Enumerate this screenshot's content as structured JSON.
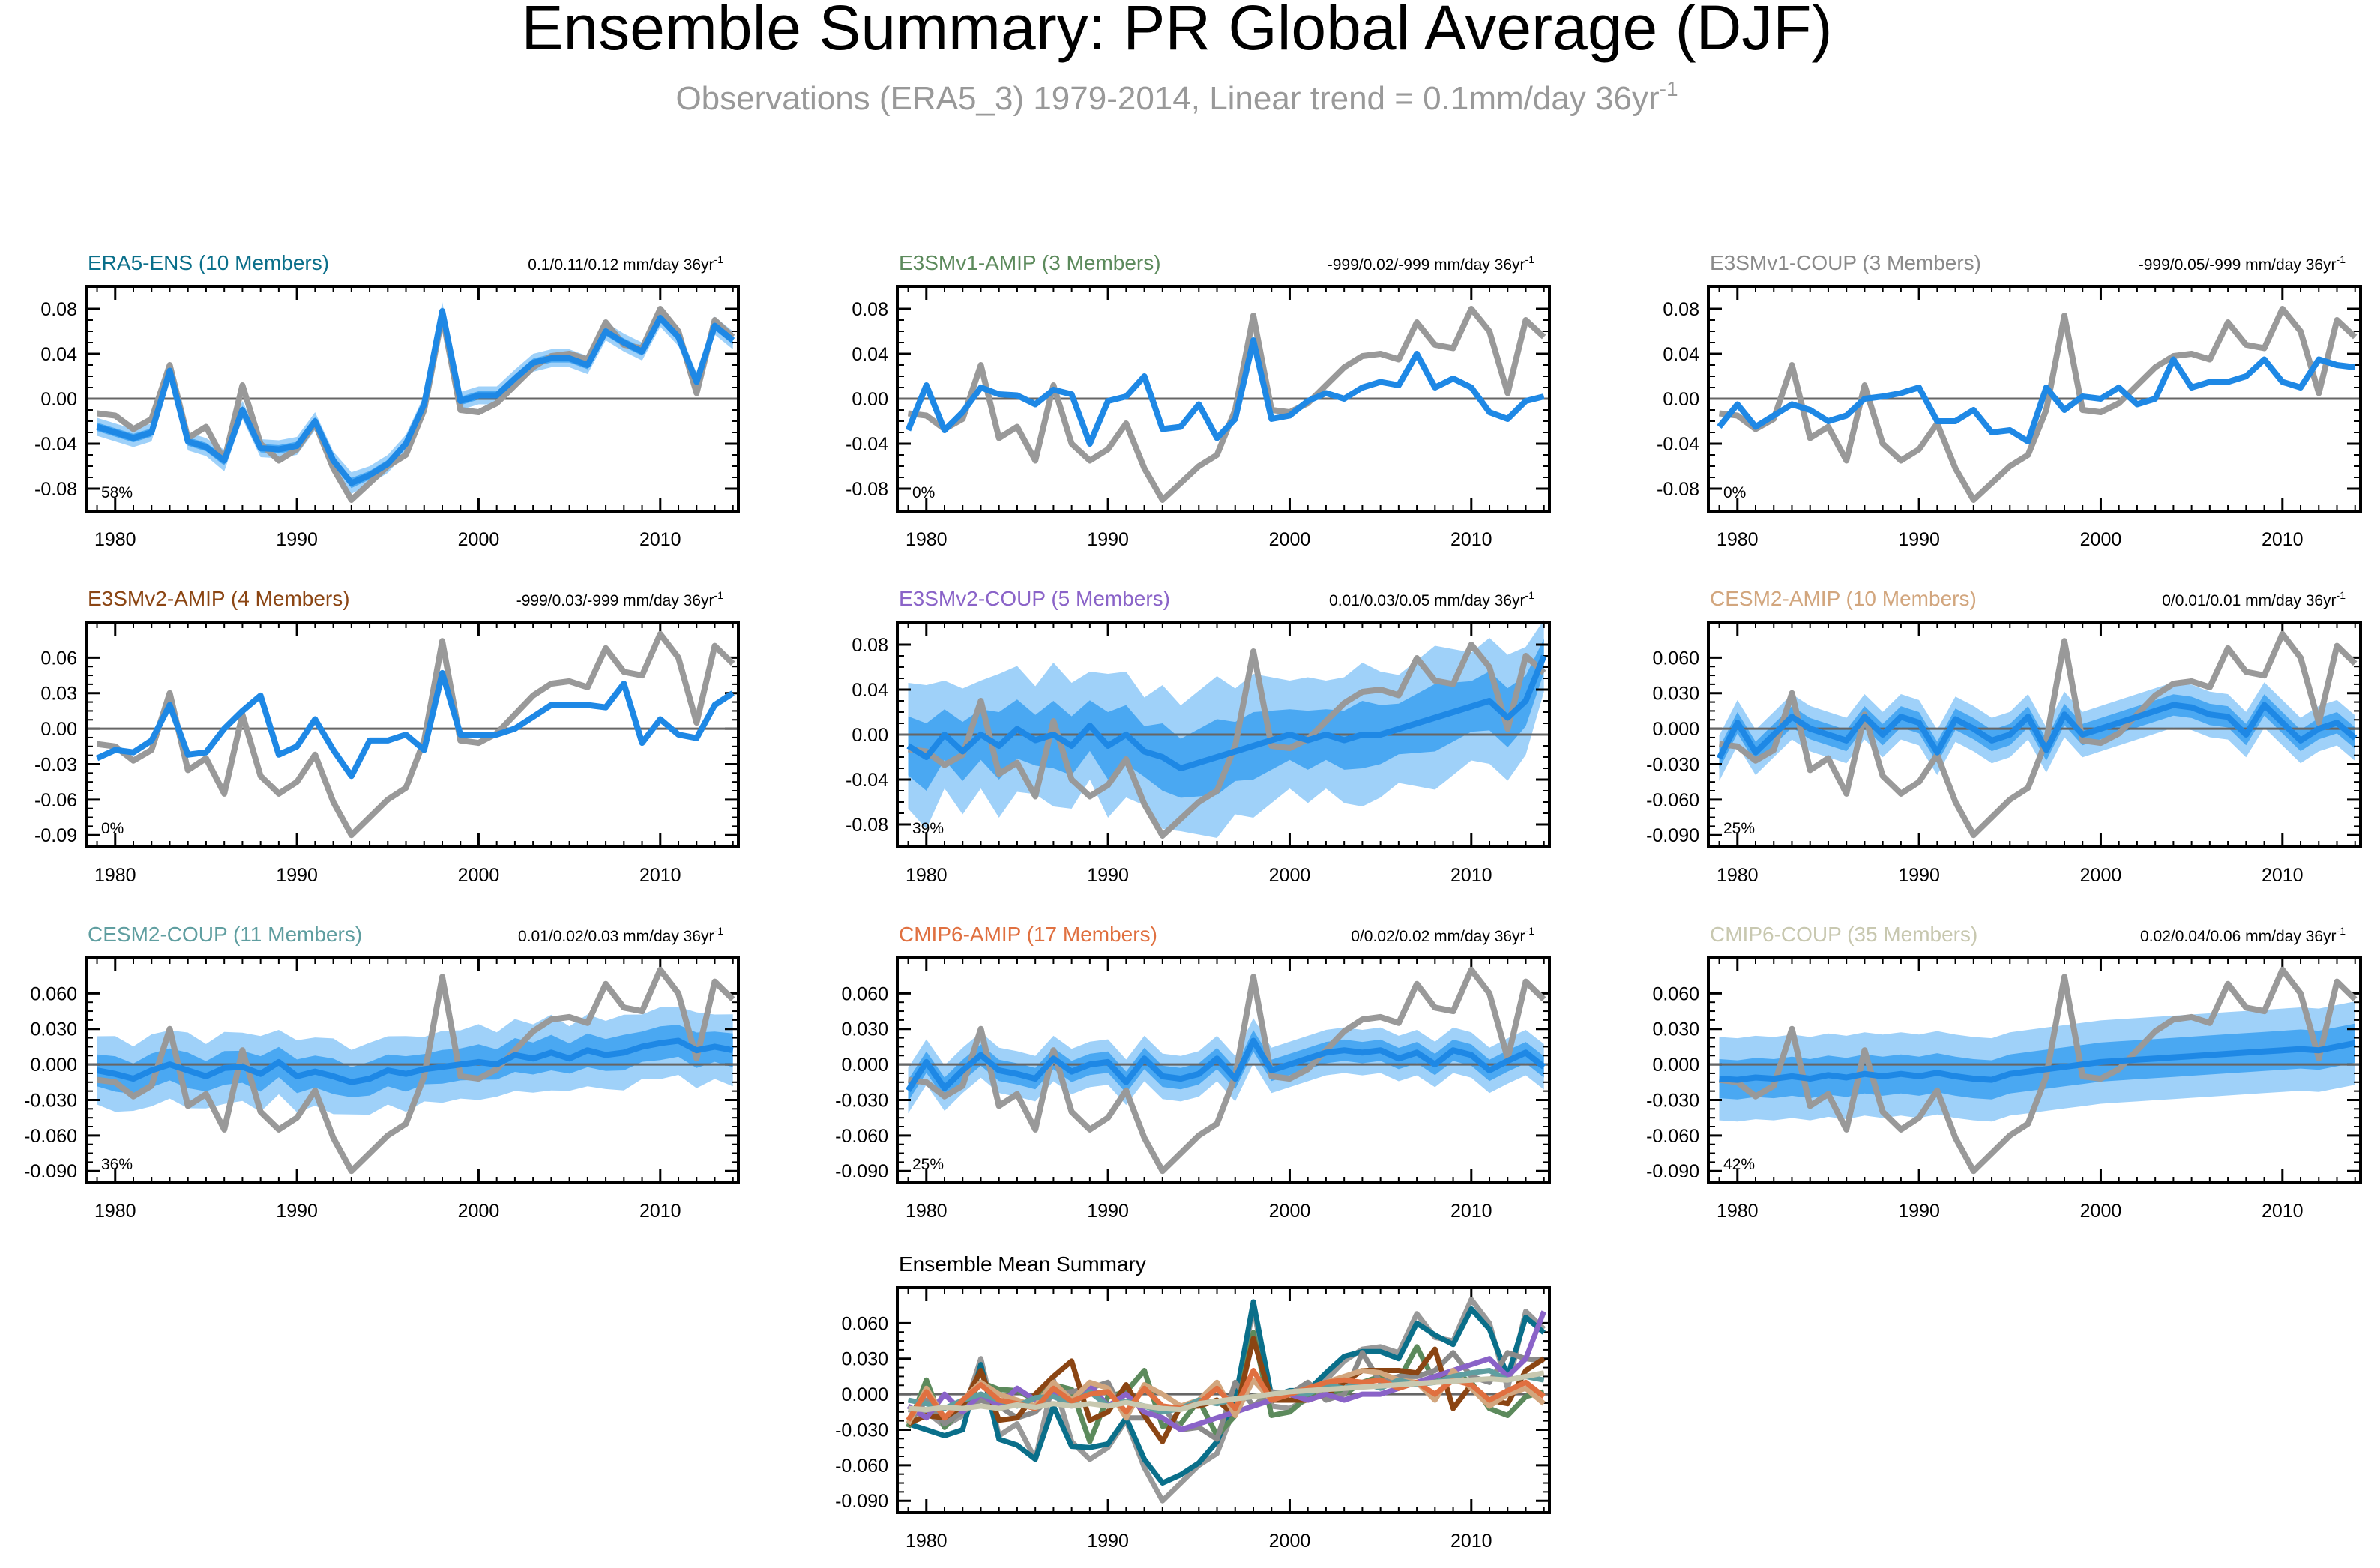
{
  "title": "Ensemble Summary: PR Global Average (DJF)",
  "subtitle": {
    "text": "Observations (ERA5_3) 1979-2014, Linear trend = 0.1mm/day 36yr",
    "sup": "-1"
  },
  "colors": {
    "obs": "#999999",
    "mean": "#1e88e5",
    "band_outer": "#9fd1f9",
    "band_inner": "#4aa8f2",
    "zero": "#666666"
  },
  "chart_data": {
    "type": "line",
    "x": [
      1979,
      1980,
      1981,
      1982,
      1983,
      1984,
      1985,
      1986,
      1987,
      1988,
      1989,
      1990,
      1991,
      1992,
      1993,
      1994,
      1995,
      1996,
      1997,
      1998,
      1999,
      2000,
      2001,
      2002,
      2003,
      2004,
      2005,
      2006,
      2007,
      2008,
      2009,
      2010,
      2011,
      2012,
      2013,
      2014
    ],
    "xticks": [
      1980,
      1990,
      2000,
      2010
    ],
    "observations": {
      "name": "ERA5_3",
      "values": [
        -0.013,
        -0.015,
        -0.027,
        -0.018,
        0.03,
        -0.035,
        -0.025,
        -0.055,
        0.012,
        -0.04,
        -0.055,
        -0.045,
        -0.022,
        -0.062,
        -0.09,
        -0.075,
        -0.06,
        -0.05,
        -0.01,
        0.074,
        -0.01,
        -0.012,
        -0.004,
        0.012,
        0.028,
        0.038,
        0.04,
        0.035,
        0.068,
        0.048,
        0.045,
        0.08,
        0.06,
        0.005,
        0.07,
        0.055
      ]
    },
    "panels": [
      {
        "name": "ERA5-ENS (10 Members)",
        "color": "#0a6f8a",
        "trend": "0.1/0.11/0.12 mm/day 36yr",
        "pct": "58%",
        "yticks": [
          "0.08",
          "0.04",
          "0.00",
          "-0.04",
          "-0.08"
        ],
        "ylim": [
          -0.1,
          0.1
        ],
        "mean": [
          -0.025,
          -0.03,
          -0.035,
          -0.03,
          0.025,
          -0.038,
          -0.043,
          -0.055,
          -0.01,
          -0.044,
          -0.045,
          -0.042,
          -0.02,
          -0.055,
          -0.075,
          -0.068,
          -0.058,
          -0.04,
          -0.005,
          0.078,
          -0.002,
          0.003,
          0.003,
          0.018,
          0.032,
          0.036,
          0.036,
          0.03,
          0.06,
          0.05,
          0.042,
          0.072,
          0.055,
          0.015,
          0.065,
          0.052
        ],
        "spread": [
          0.005,
          0.005,
          0.005,
          0.005,
          0.005,
          0.005,
          0.005,
          0.006,
          0.005,
          0.005,
          0.005,
          0.005,
          0.005,
          0.005,
          0.006,
          0.005,
          0.005,
          0.005,
          0.005,
          0.005,
          0.005,
          0.005,
          0.005,
          0.005,
          0.005,
          0.005,
          0.005,
          0.005,
          0.005,
          0.005,
          0.005,
          0.005,
          0.005,
          0.005,
          0.005,
          0.005
        ]
      },
      {
        "name": "E3SMv1-AMIP (3 Members)",
        "color": "#5c8a5c",
        "trend": "-999/0.02/-999 mm/day 36yr",
        "pct": "0%",
        "yticks": [
          "0.08",
          "0.04",
          "0.00",
          "-0.04",
          "-0.08"
        ],
        "ylim": [
          -0.1,
          0.1
        ],
        "mean": [
          -0.028,
          0.012,
          -0.028,
          -0.012,
          0.01,
          0.004,
          0.003,
          -0.005,
          0.008,
          0.004,
          -0.04,
          -0.002,
          0.002,
          0.02,
          -0.027,
          -0.025,
          -0.005,
          -0.035,
          -0.018,
          0.052,
          -0.018,
          -0.015,
          -0.002,
          0.005,
          0.0,
          0.01,
          0.015,
          0.012,
          0.04,
          0.01,
          0.018,
          0.01,
          -0.012,
          -0.018,
          -0.002,
          0.002
        ],
        "spread": []
      },
      {
        "name": "E3SMv1-COUP (3 Members)",
        "color": "#8a8a8a",
        "trend": "-999/0.05/-999 mm/day 36yr",
        "pct": "0%",
        "yticks": [
          "0.08",
          "0.04",
          "0.00",
          "-0.04",
          "-0.08"
        ],
        "ylim": [
          -0.1,
          0.1
        ],
        "mean": [
          -0.025,
          -0.005,
          -0.025,
          -0.015,
          -0.005,
          -0.01,
          -0.02,
          -0.015,
          0.0,
          0.002,
          0.005,
          0.01,
          -0.02,
          -0.02,
          -0.01,
          -0.03,
          -0.028,
          -0.038,
          0.01,
          -0.01,
          0.002,
          0.0,
          0.01,
          -0.005,
          0.0,
          0.035,
          0.01,
          0.015,
          0.015,
          0.02,
          0.035,
          0.015,
          0.01,
          0.035,
          0.03,
          0.028
        ],
        "spread": []
      },
      {
        "name": "E3SMv2-AMIP (4 Members)",
        "color": "#8b4513",
        "trend": "-999/0.03/-999 mm/day 36yr",
        "pct": "0%",
        "yticks": [
          "0.06",
          "0.03",
          "0.00",
          "-0.03",
          "-0.06",
          "-0.09"
        ],
        "ylim": [
          -0.1,
          0.09
        ],
        "mean": [
          -0.025,
          -0.018,
          -0.02,
          -0.01,
          0.02,
          -0.022,
          -0.02,
          0.0,
          0.015,
          0.028,
          -0.022,
          -0.015,
          0.008,
          -0.018,
          -0.04,
          -0.01,
          -0.01,
          -0.005,
          -0.018,
          0.047,
          -0.005,
          -0.005,
          -0.005,
          0.0,
          0.01,
          0.02,
          0.02,
          0.02,
          0.018,
          0.038,
          -0.012,
          0.008,
          -0.005,
          -0.008,
          0.02,
          0.03
        ],
        "spread": []
      },
      {
        "name": "E3SMv2-COUP (5 Members)",
        "color": "#8a63c8",
        "trend": "0.01/0.03/0.05 mm/day 36yr",
        "pct": "39%",
        "yticks": [
          "0.08",
          "0.04",
          "0.00",
          "-0.04",
          "-0.08"
        ],
        "ylim": [
          -0.1,
          0.1
        ],
        "mean": [
          -0.01,
          -0.02,
          0.0,
          -0.015,
          0.0,
          -0.01,
          0.005,
          -0.005,
          0.0,
          -0.01,
          0.008,
          -0.01,
          0.0,
          -0.015,
          -0.02,
          -0.03,
          -0.025,
          -0.02,
          -0.015,
          -0.01,
          -0.005,
          0.0,
          -0.005,
          0.0,
          -0.005,
          0.0,
          0.0,
          0.005,
          0.01,
          0.015,
          0.02,
          0.025,
          0.03,
          0.015,
          0.03,
          0.07
        ],
        "spread": [
          0.035,
          0.04,
          0.03,
          0.035,
          0.03,
          0.04,
          0.035,
          0.03,
          0.04,
          0.035,
          0.03,
          0.04,
          0.035,
          0.03,
          0.04,
          0.035,
          0.04,
          0.045,
          0.035,
          0.04,
          0.035,
          0.03,
          0.035,
          0.03,
          0.035,
          0.04,
          0.035,
          0.03,
          0.035,
          0.04,
          0.035,
          0.03,
          0.035,
          0.035,
          0.03,
          0.02
        ]
      },
      {
        "name": "CESM2-AMIP (10 Members)",
        "color": "#d2a67e",
        "trend": "0/0.01/0.01 mm/day 36yr",
        "pct": "25%",
        "yticks": [
          "0.060",
          "0.030",
          "0.000",
          "-0.030",
          "-0.060",
          "-0.090"
        ],
        "ylim": [
          -0.1,
          0.09
        ],
        "mean": [
          -0.025,
          0.005,
          -0.02,
          -0.005,
          0.01,
          0.0,
          -0.005,
          -0.01,
          0.01,
          -0.005,
          0.01,
          0.005,
          -0.02,
          0.008,
          0.0,
          -0.01,
          -0.005,
          0.01,
          -0.018,
          0.012,
          -0.005,
          0.0,
          0.005,
          0.01,
          0.015,
          0.02,
          0.018,
          0.012,
          0.01,
          -0.005,
          0.02,
          0.005,
          -0.01,
          0.0,
          0.005,
          -0.008
        ],
        "spread": [
          0.012,
          0.012,
          0.012,
          0.012,
          0.012,
          0.012,
          0.012,
          0.012,
          0.012,
          0.012,
          0.012,
          0.012,
          0.012,
          0.012,
          0.012,
          0.012,
          0.012,
          0.012,
          0.012,
          0.012,
          0.012,
          0.012,
          0.012,
          0.012,
          0.012,
          0.012,
          0.012,
          0.012,
          0.012,
          0.012,
          0.012,
          0.012,
          0.012,
          0.012,
          0.012,
          0.012
        ]
      },
      {
        "name": "CESM2-COUP (11 Members)",
        "color": "#5f9ea0",
        "trend": "0.01/0.02/0.03 mm/day 36yr",
        "pct": "36%",
        "yticks": [
          "0.060",
          "0.030",
          "0.000",
          "-0.030",
          "-0.060",
          "-0.090"
        ],
        "ylim": [
          -0.1,
          0.09
        ],
        "mean": [
          -0.005,
          -0.008,
          -0.012,
          -0.005,
          0.0,
          -0.005,
          -0.01,
          -0.003,
          -0.002,
          -0.008,
          0.002,
          -0.01,
          -0.006,
          -0.01,
          -0.015,
          -0.012,
          -0.005,
          -0.008,
          -0.004,
          -0.002,
          0.0,
          0.002,
          0.0,
          0.008,
          0.005,
          0.01,
          0.005,
          0.012,
          0.008,
          0.01,
          0.015,
          0.018,
          0.02,
          0.012,
          0.015,
          0.012
        ],
        "spread": [
          0.018,
          0.02,
          0.017,
          0.019,
          0.018,
          0.02,
          0.017,
          0.019,
          0.018,
          0.02,
          0.017,
          0.019,
          0.018,
          0.02,
          0.017,
          0.019,
          0.018,
          0.02,
          0.017,
          0.019,
          0.018,
          0.02,
          0.017,
          0.019,
          0.018,
          0.02,
          0.017,
          0.019,
          0.018,
          0.02,
          0.017,
          0.019,
          0.018,
          0.02,
          0.017,
          0.019
        ]
      },
      {
        "name": "CMIP6-AMIP (17 Members)",
        "color": "#e07040",
        "trend": "0/0.02/0.02 mm/day 36yr",
        "pct": "25%",
        "yticks": [
          "0.060",
          "0.030",
          "0.000",
          "-0.030",
          "-0.060",
          "-0.090"
        ],
        "ylim": [
          -0.1,
          0.09
        ],
        "mean": [
          -0.022,
          0.002,
          -0.02,
          -0.005,
          0.008,
          -0.005,
          -0.008,
          -0.012,
          0.005,
          -0.006,
          0.0,
          0.002,
          -0.015,
          0.005,
          -0.01,
          -0.012,
          -0.008,
          0.005,
          -0.012,
          0.02,
          -0.005,
          0.0,
          0.005,
          0.01,
          0.012,
          0.01,
          0.012,
          0.005,
          0.01,
          0.0,
          0.012,
          0.008,
          -0.005,
          0.003,
          0.01,
          -0.002
        ],
        "spread": [
          0.012,
          0.012,
          0.012,
          0.012,
          0.012,
          0.012,
          0.012,
          0.012,
          0.012,
          0.012,
          0.012,
          0.012,
          0.012,
          0.012,
          0.012,
          0.012,
          0.012,
          0.012,
          0.012,
          0.012,
          0.012,
          0.012,
          0.012,
          0.012,
          0.012,
          0.012,
          0.012,
          0.012,
          0.012,
          0.012,
          0.012,
          0.012,
          0.012,
          0.012,
          0.012,
          0.012
        ]
      },
      {
        "name": "CMIP6-COUP (35 Members)",
        "color": "#c8c8b0",
        "trend": "0.02/0.04/0.06 mm/day 36yr",
        "pct": "42%",
        "yticks": [
          "0.060",
          "0.030",
          "0.000",
          "-0.030",
          "-0.060",
          "-0.090"
        ],
        "ylim": [
          -0.1,
          0.09
        ],
        "mean": [
          -0.012,
          -0.013,
          -0.011,
          -0.012,
          -0.01,
          -0.012,
          -0.009,
          -0.011,
          -0.008,
          -0.01,
          -0.008,
          -0.01,
          -0.007,
          -0.01,
          -0.012,
          -0.013,
          -0.008,
          -0.006,
          -0.004,
          -0.002,
          0.0,
          0.002,
          0.003,
          0.004,
          0.005,
          0.006,
          0.007,
          0.008,
          0.009,
          0.01,
          0.011,
          0.012,
          0.013,
          0.012,
          0.015,
          0.018
        ],
        "spread": [
          0.022,
          0.022,
          0.022,
          0.022,
          0.022,
          0.022,
          0.022,
          0.022,
          0.022,
          0.022,
          0.022,
          0.022,
          0.022,
          0.022,
          0.022,
          0.022,
          0.022,
          0.022,
          0.022,
          0.022,
          0.022,
          0.022,
          0.022,
          0.022,
          0.022,
          0.022,
          0.022,
          0.022,
          0.022,
          0.022,
          0.022,
          0.022,
          0.022,
          0.022,
          0.022,
          0.022
        ]
      }
    ],
    "summary": {
      "title": "Ensemble Mean Summary",
      "yticks": [
        "0.060",
        "0.030",
        "0.000",
        "-0.030",
        "-0.060",
        "-0.090"
      ],
      "ylim": [
        -0.1,
        0.09
      ]
    }
  }
}
